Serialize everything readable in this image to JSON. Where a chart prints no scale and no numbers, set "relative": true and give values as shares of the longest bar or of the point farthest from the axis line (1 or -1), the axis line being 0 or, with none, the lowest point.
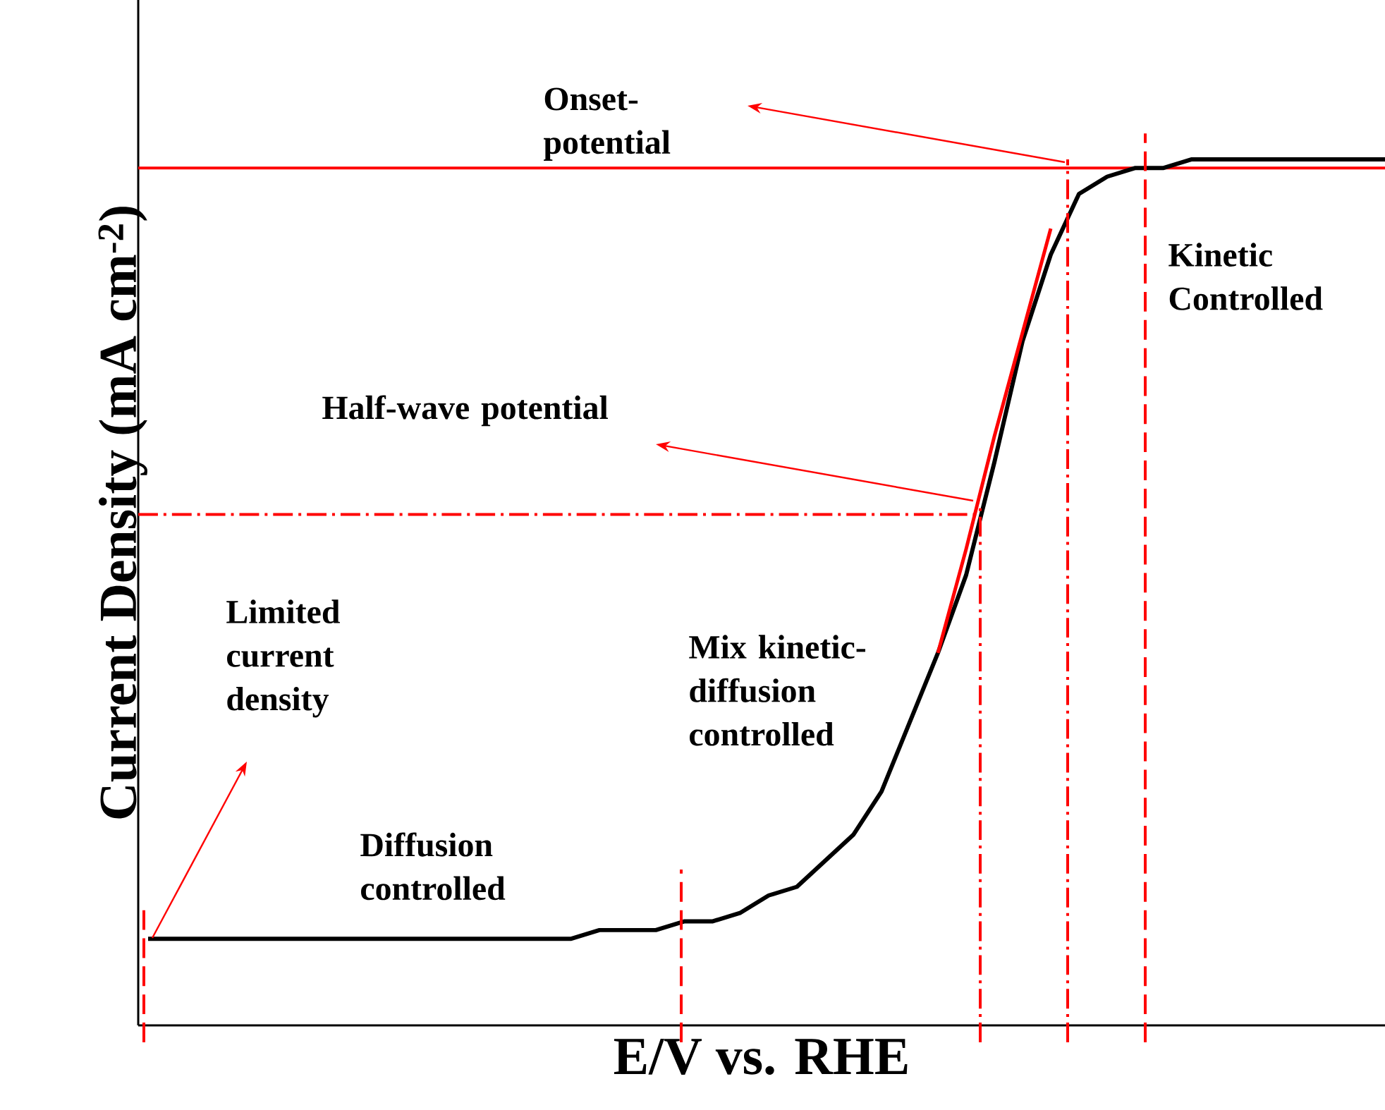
{
  "chart_data": {
    "type": "line",
    "relative": true,
    "xlabel": "E/V vs. RHE",
    "ylabel": "Current Density (mA cm$^{-2}$)",
    "categories": [
      null,
      null,
      null,
      null,
      null,
      null,
      null,
      null,
      null,
      null,
      null,
      null,
      null,
      null,
      null,
      null,
      null,
      null,
      null,
      null,
      null,
      null,
      null,
      null,
      null,
      null,
      null,
      null,
      null,
      null,
      null,
      null,
      null,
      null,
      null,
      null,
      null,
      null,
      null,
      null,
      null,
      null,
      null,
      null,
      null
    ],
    "series": [
      {
        "color": "#000000",
        "values": [
          0.1,
          0.1,
          0.1,
          0.1,
          0.1,
          0.1,
          0.1,
          0.1,
          0.1,
          0.1,
          0.1,
          0.1,
          0.1,
          0.1,
          0.1,
          0.1,
          0.11,
          0.11,
          0.11,
          0.12,
          0.12,
          0.13,
          0.15,
          0.16,
          0.19,
          0.22,
          0.27,
          0.35,
          0.43,
          0.52,
          0.65,
          0.79,
          0.89,
          0.96,
          0.98,
          0.99,
          0.99,
          1.0,
          1.0,
          1.0,
          1.0,
          1.0,
          1.0,
          1.0,
          1.0
        ]
      },
      {
        "type": "line",
        "color": "#ff0000",
        "values": [
          null,
          null,
          null,
          null,
          null,
          null,
          null,
          null,
          null,
          null,
          null,
          null,
          null,
          null,
          null,
          null,
          null,
          null,
          null,
          null,
          null,
          null,
          null,
          null,
          null,
          null,
          null,
          null,
          0.43,
          0.55,
          0.68,
          0.8,
          0.92,
          null,
          null,
          null,
          null,
          null,
          null,
          null,
          null,
          null,
          null,
          null,
          null
        ]
      }
    ],
    "ref_lines": [
      {
        "axis": "y",
        "value": 0.99,
        "color": "#ff0000",
        "line_style": "solid"
      },
      {
        "axis": "y",
        "value": 0.59,
        "color": "#ff0000",
        "line_style": "dashdot"
      }
    ],
    "annotations": [
      "Onset-potential",
      "Half-wave potential",
      "Limited current density",
      "Diffusion controlled",
      "Mix kinetic-diffusion controlled",
      "Kinetic Controlled"
    ]
  }
}
